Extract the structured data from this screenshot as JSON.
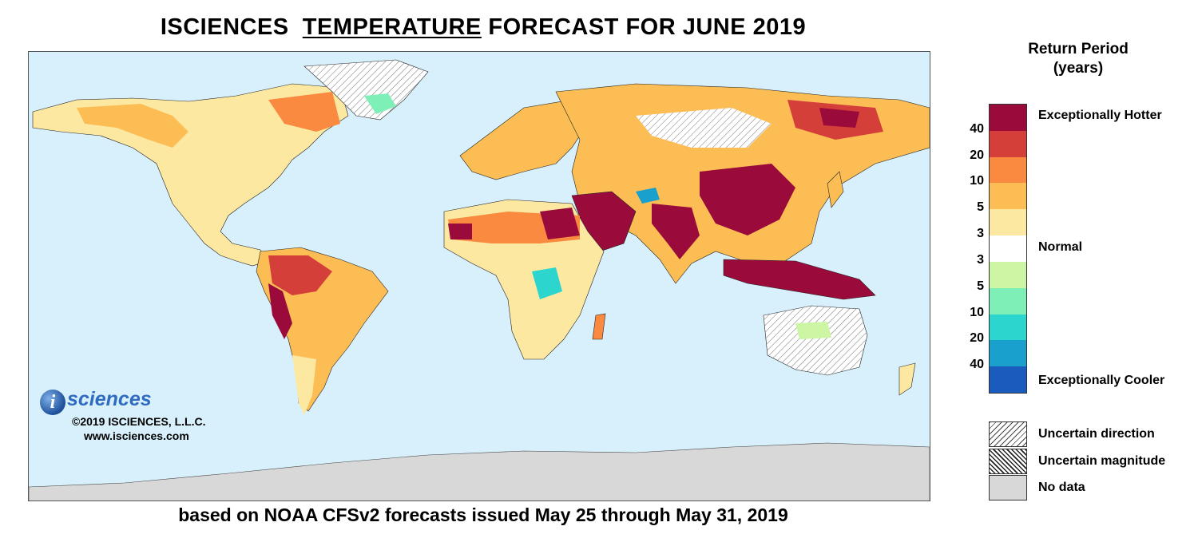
{
  "title": {
    "prefix": "ISCIENCES  ",
    "underlined": "TEMPERATURE",
    "suffix": " FORECAST FOR JUNE 2019"
  },
  "subtitle": "based on NOAA CFSv2 forecasts issued May 25 through May 31, 2019",
  "logo": {
    "letter": "i",
    "word": "sciences",
    "copyright": "©2019 ISCIENCES, L.L.C.",
    "url": "www.isciences.com"
  },
  "legend": {
    "title_line1": "Return Period",
    "title_line2": "(years)",
    "label_hot": "Exceptionally Hotter",
    "label_normal": "Normal",
    "label_cool": "Exceptionally Cooler",
    "ticks": [
      "40",
      "20",
      "10",
      "5",
      "3",
      "3",
      "5",
      "10",
      "20",
      "40"
    ],
    "colors": [
      "#9a0b3b",
      "#d43f3a",
      "#f98a40",
      "#fdbd55",
      "#fde8a2",
      "#ffffff",
      "#ccf5a4",
      "#7ef0b7",
      "#2dd5cf",
      "#1aa0cc",
      "#1a5cbd"
    ],
    "patterns": [
      {
        "label": "Uncertain direction"
      },
      {
        "label": "Uncertain magnitude"
      },
      {
        "label": "No data"
      }
    ]
  },
  "map_colors": {
    "ocean": "#d8f0fb",
    "land_base": "#fde8a2",
    "no_data": "#d8d8d8",
    "exceptional_hot": "#9a0b3b",
    "hot": "#f98a40",
    "cool": "#2dd5cf"
  }
}
